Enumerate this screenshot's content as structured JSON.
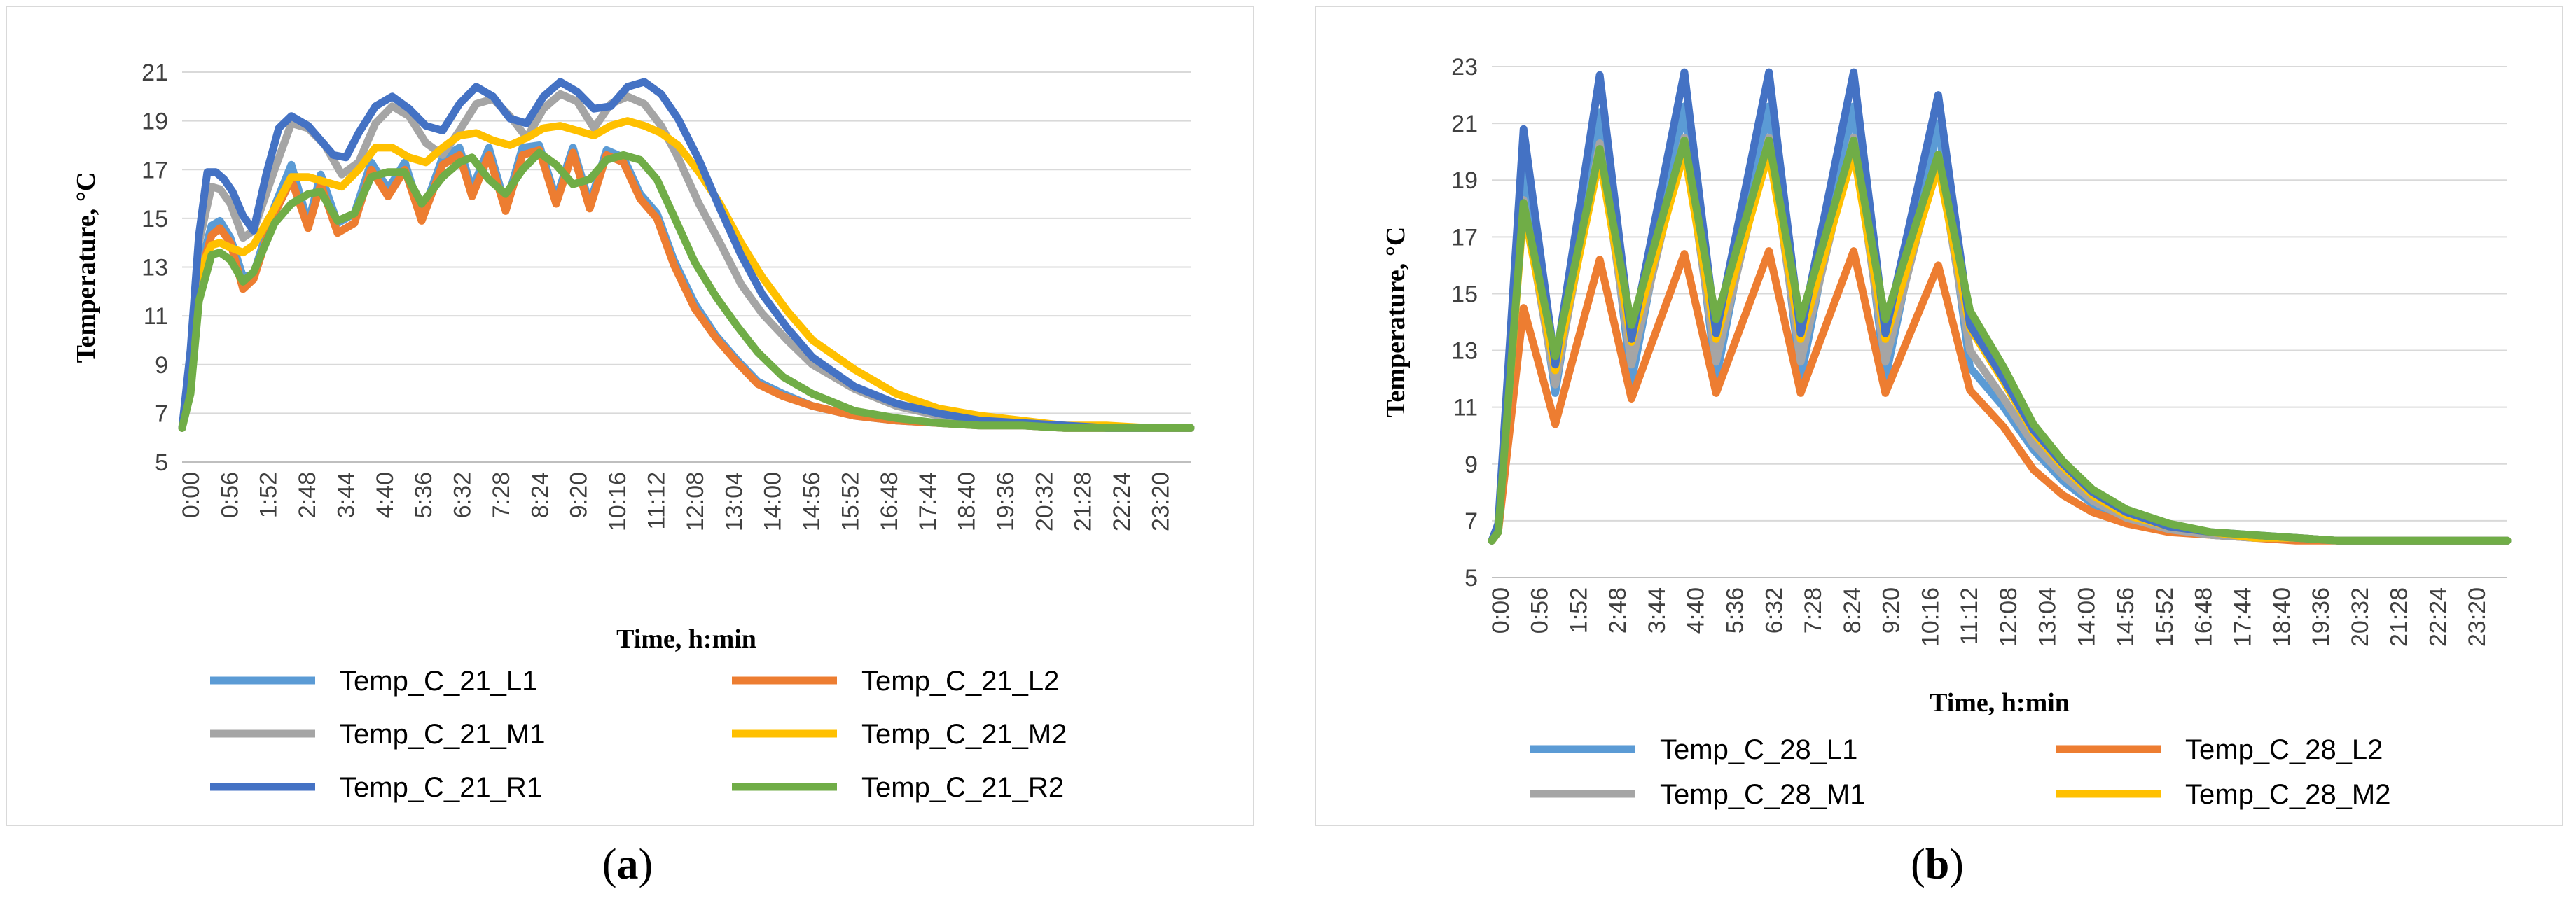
{
  "colors": {
    "L1": "#5B9BD5",
    "L2": "#ED7D31",
    "M1": "#A5A5A5",
    "M2": "#FFC000",
    "R1": "#4472C4",
    "R2": "#70AD47",
    "grid": "#d9d9d9"
  },
  "panels": [
    {
      "open": "(",
      "letter": "a",
      "close": ")"
    },
    {
      "open": "(",
      "letter": "b",
      "close": ")"
    }
  ],
  "chart_data": [
    {
      "type": "line",
      "xlabel": "Time, h:min",
      "ylabel": "Temperature, °C",
      "ylim": [
        5,
        21
      ],
      "yticks": [
        5,
        7,
        9,
        11,
        13,
        15,
        17,
        19,
        21
      ],
      "xlim_hours": [
        0,
        24
      ],
      "xtick_labels": [
        "0:00",
        "0:56",
        "1:52",
        "2:48",
        "3:44",
        "4:40",
        "5:36",
        "6:32",
        "7:28",
        "8:24",
        "9:20",
        "10:16",
        "11:12",
        "12:08",
        "13:04",
        "14:00",
        "14:56",
        "15:52",
        "16:48",
        "17:44",
        "18:40",
        "19:36",
        "20:32",
        "21:28",
        "22:24",
        "23:20"
      ],
      "grid": "horizontal",
      "legend_position": "bottom",
      "series": [
        {
          "name": "Temp_C_21_L1",
          "key": "L1",
          "x": [
            0,
            0.2,
            0.4,
            0.7,
            0.9,
            1.15,
            1.45,
            1.7,
            2.2,
            2.6,
            3.0,
            3.3,
            3.7,
            4.1,
            4.5,
            4.9,
            5.3,
            5.7,
            6.2,
            6.6,
            6.9,
            7.3,
            7.7,
            8.1,
            8.5,
            8.9,
            9.3,
            9.7,
            10.1,
            10.5,
            10.9,
            11.3,
            11.7,
            12.2,
            12.7,
            13.2,
            13.7,
            14.3,
            15,
            16,
            17,
            18,
            19,
            20,
            21,
            22,
            23,
            24
          ],
          "y": [
            6.4,
            8.2,
            12.8,
            14.7,
            14.9,
            14.2,
            12.6,
            12.7,
            15.5,
            17.2,
            14.8,
            16.8,
            14.8,
            15.2,
            17.3,
            16.2,
            17.3,
            15.1,
            17.5,
            17.9,
            16.2,
            17.9,
            15.5,
            17.9,
            18.0,
            15.8,
            17.9,
            15.6,
            17.8,
            17.5,
            16.0,
            15.2,
            13.3,
            11.5,
            10.2,
            9.2,
            8.3,
            7.8,
            7.3,
            6.9,
            6.7,
            6.6,
            6.5,
            6.5,
            6.4,
            6.4,
            6.4,
            6.4
          ]
        },
        {
          "name": "Temp_C_21_L2",
          "key": "L2",
          "x": [
            0,
            0.2,
            0.4,
            0.7,
            0.9,
            1.15,
            1.45,
            1.7,
            2.2,
            2.6,
            3.0,
            3.3,
            3.7,
            4.1,
            4.5,
            4.9,
            5.3,
            5.7,
            6.2,
            6.6,
            6.9,
            7.3,
            7.7,
            8.1,
            8.5,
            8.9,
            9.3,
            9.7,
            10.1,
            10.5,
            10.9,
            11.3,
            11.7,
            12.2,
            12.7,
            13.2,
            13.7,
            14.3,
            15,
            16,
            17,
            18,
            19,
            20,
            21,
            22,
            23,
            24
          ],
          "y": [
            6.4,
            8.0,
            12.5,
            14.3,
            14.6,
            14.0,
            12.1,
            12.5,
            15.2,
            16.6,
            14.6,
            16.4,
            14.4,
            14.8,
            17.0,
            15.9,
            17.0,
            14.9,
            17.2,
            17.6,
            15.9,
            17.6,
            15.3,
            17.6,
            17.8,
            15.6,
            17.7,
            15.4,
            17.6,
            17.3,
            15.8,
            15.0,
            13.1,
            11.3,
            10.1,
            9.1,
            8.2,
            7.7,
            7.3,
            6.9,
            6.7,
            6.6,
            6.5,
            6.5,
            6.4,
            6.4,
            6.4,
            6.4
          ]
        },
        {
          "name": "Temp_C_21_M1",
          "key": "M1",
          "x": [
            0,
            0.2,
            0.4,
            0.7,
            0.9,
            1.15,
            1.45,
            1.7,
            2.2,
            2.6,
            3.0,
            3.4,
            3.8,
            4.2,
            4.6,
            5.0,
            5.4,
            5.8,
            6.2,
            6.6,
            7.0,
            7.4,
            7.8,
            8.2,
            8.6,
            9.0,
            9.4,
            9.8,
            10.2,
            10.6,
            11.0,
            11.4,
            11.8,
            12.3,
            12.8,
            13.3,
            13.8,
            14.4,
            15,
            16,
            17,
            18,
            19,
            20,
            21,
            22,
            23,
            24
          ],
          "y": [
            6.4,
            9.0,
            14.0,
            16.3,
            16.2,
            15.6,
            14.2,
            14.5,
            17.0,
            18.9,
            18.7,
            18.0,
            16.8,
            17.3,
            18.9,
            19.6,
            19.2,
            18.1,
            17.6,
            18.6,
            19.7,
            19.9,
            19.2,
            18.3,
            19.5,
            20.1,
            19.8,
            18.7,
            19.7,
            20.0,
            19.7,
            18.8,
            17.5,
            15.6,
            14.0,
            12.3,
            11.1,
            10.0,
            9.0,
            8.0,
            7.3,
            6.9,
            6.7,
            6.6,
            6.5,
            6.4,
            6.4,
            6.4
          ]
        },
        {
          "name": "Temp_C_21_M2",
          "key": "M2",
          "x": [
            0,
            0.2,
            0.4,
            0.7,
            0.9,
            1.15,
            1.45,
            1.7,
            2.2,
            2.6,
            3.0,
            3.4,
            3.8,
            4.2,
            4.6,
            5.0,
            5.4,
            5.8,
            6.2,
            6.6,
            7.0,
            7.4,
            7.8,
            8.2,
            8.6,
            9.0,
            9.4,
            9.8,
            10.2,
            10.6,
            11.0,
            11.4,
            11.8,
            12.3,
            12.8,
            13.3,
            13.8,
            14.4,
            15,
            16,
            17,
            18,
            19,
            20,
            21,
            22,
            23,
            24
          ],
          "y": [
            6.4,
            8.6,
            12.8,
            13.9,
            14.0,
            13.8,
            13.6,
            13.9,
            15.4,
            16.7,
            16.7,
            16.5,
            16.3,
            17.0,
            17.9,
            17.9,
            17.5,
            17.3,
            17.9,
            18.4,
            18.5,
            18.2,
            18.0,
            18.3,
            18.7,
            18.8,
            18.6,
            18.4,
            18.8,
            19.0,
            18.8,
            18.5,
            18.0,
            16.9,
            15.6,
            14.0,
            12.6,
            11.2,
            10.0,
            8.8,
            7.8,
            7.2,
            6.9,
            6.7,
            6.5,
            6.5,
            6.4,
            6.4
          ]
        },
        {
          "name": "Temp_C_21_R1",
          "key": "R1",
          "x": [
            0,
            0.2,
            0.4,
            0.6,
            0.8,
            1.0,
            1.2,
            1.45,
            1.7,
            2.0,
            2.3,
            2.6,
            3.0,
            3.3,
            3.6,
            3.9,
            4.2,
            4.6,
            5.0,
            5.4,
            5.8,
            6.2,
            6.6,
            7.0,
            7.4,
            7.8,
            8.2,
            8.6,
            9.0,
            9.4,
            9.8,
            10.2,
            10.6,
            11.0,
            11.4,
            11.8,
            12.3,
            12.8,
            13.3,
            13.8,
            14.4,
            15,
            16,
            17,
            18,
            19,
            20,
            21,
            22,
            23,
            24
          ],
          "y": [
            6.4,
            9.6,
            14.3,
            16.9,
            16.9,
            16.6,
            16.1,
            15.1,
            14.5,
            16.8,
            18.7,
            19.2,
            18.8,
            18.2,
            17.6,
            17.5,
            18.5,
            19.6,
            20.0,
            19.5,
            18.8,
            18.6,
            19.7,
            20.4,
            20.0,
            19.1,
            18.9,
            20.0,
            20.6,
            20.2,
            19.5,
            19.6,
            20.4,
            20.6,
            20.1,
            19.1,
            17.4,
            15.4,
            13.5,
            11.9,
            10.5,
            9.3,
            8.1,
            7.4,
            7.0,
            6.7,
            6.6,
            6.5,
            6.4,
            6.4,
            6.4
          ]
        },
        {
          "name": "Temp_C_21_R2",
          "key": "R2",
          "x": [
            0,
            0.2,
            0.4,
            0.7,
            0.9,
            1.15,
            1.45,
            1.7,
            2.2,
            2.6,
            3.0,
            3.3,
            3.7,
            4.1,
            4.5,
            4.9,
            5.3,
            5.7,
            6.2,
            6.6,
            6.9,
            7.3,
            7.7,
            8.1,
            8.5,
            8.9,
            9.3,
            9.7,
            10.1,
            10.5,
            10.9,
            11.3,
            11.7,
            12.2,
            12.7,
            13.2,
            13.7,
            14.3,
            15,
            16,
            17,
            18,
            19,
            20,
            21,
            22,
            23,
            24
          ],
          "y": [
            6.4,
            7.8,
            11.6,
            13.5,
            13.6,
            13.3,
            12.4,
            12.8,
            14.8,
            15.6,
            16.0,
            16.1,
            14.9,
            15.2,
            16.7,
            16.9,
            16.9,
            15.6,
            16.7,
            17.3,
            17.5,
            16.6,
            16.0,
            17.0,
            17.7,
            17.2,
            16.4,
            16.6,
            17.4,
            17.6,
            17.4,
            16.6,
            15.1,
            13.2,
            11.8,
            10.6,
            9.5,
            8.5,
            7.8,
            7.1,
            6.8,
            6.6,
            6.5,
            6.5,
            6.4,
            6.4,
            6.4,
            6.4
          ]
        }
      ]
    },
    {
      "type": "line",
      "xlabel": "Time, h:min",
      "ylabel": "Temperature, °C",
      "ylim": [
        5,
        23
      ],
      "yticks": [
        5,
        7,
        9,
        11,
        13,
        15,
        17,
        19,
        21,
        23
      ],
      "xlim_hours": [
        0,
        24
      ],
      "xtick_labels": [
        "0:00",
        "0:56",
        "1:52",
        "2:48",
        "3:44",
        "4:40",
        "5:36",
        "6:32",
        "7:28",
        "8:24",
        "9:20",
        "10:16",
        "11:12",
        "12:08",
        "13:04",
        "14:00",
        "14:56",
        "15:52",
        "16:48",
        "17:44",
        "18:40",
        "19:36",
        "20:32",
        "21:28",
        "22:24",
        "23:20"
      ],
      "grid": "horizontal",
      "legend_position": "bottom",
      "series": [
        {
          "name": "Temp_C_28_L1",
          "key": "L1",
          "x": [
            0,
            0.15,
            0.75,
            1.5,
            2.55,
            3.3,
            4.55,
            5.3,
            6.55,
            7.3,
            8.55,
            9.3,
            10.55,
            11.3,
            12.1,
            12.8,
            13.5,
            14.2,
            15,
            16,
            17,
            18,
            19,
            20,
            21,
            22,
            23,
            24
          ],
          "y": [
            6.3,
            6.8,
            19.4,
            11.5,
            21.4,
            11.9,
            21.6,
            12.0,
            21.6,
            12.0,
            21.6,
            12.0,
            21.0,
            12.4,
            11.0,
            9.5,
            8.4,
            7.6,
            7.0,
            6.7,
            6.5,
            6.4,
            6.4,
            6.3,
            6.3,
            6.3,
            6.3,
            6.3
          ]
        },
        {
          "name": "Temp_C_28_L2",
          "key": "L2",
          "x": [
            0,
            0.15,
            0.75,
            1.5,
            2.55,
            3.3,
            4.55,
            5.3,
            6.55,
            7.3,
            8.55,
            9.3,
            10.55,
            11.3,
            12.1,
            12.8,
            13.5,
            14.2,
            15,
            16,
            17,
            18,
            19,
            20,
            21,
            22,
            23,
            24
          ],
          "y": [
            6.3,
            6.6,
            14.5,
            10.4,
            16.2,
            11.3,
            16.4,
            11.5,
            16.5,
            11.5,
            16.5,
            11.5,
            16.0,
            11.6,
            10.3,
            8.8,
            7.9,
            7.3,
            6.9,
            6.6,
            6.5,
            6.4,
            6.3,
            6.3,
            6.3,
            6.3,
            6.3,
            6.3
          ]
        },
        {
          "name": "Temp_C_28_M1",
          "key": "M1",
          "x": [
            0,
            0.15,
            0.75,
            1.5,
            2.55,
            3.3,
            4.55,
            5.3,
            6.55,
            7.3,
            8.55,
            9.3,
            10.55,
            11.3,
            12.1,
            12.8,
            13.5,
            14.2,
            15,
            16,
            17,
            18,
            19,
            20,
            21,
            22,
            23,
            24
          ],
          "y": [
            6.3,
            6.7,
            18.3,
            11.8,
            20.3,
            12.5,
            20.5,
            12.6,
            20.5,
            12.6,
            20.5,
            12.6,
            19.9,
            13.0,
            11.3,
            9.7,
            8.6,
            7.7,
            7.1,
            6.7,
            6.5,
            6.4,
            6.4,
            6.3,
            6.3,
            6.3,
            6.3,
            6.3
          ]
        },
        {
          "name": "Temp_C_28_M2",
          "key": "M2",
          "x": [
            0,
            0.15,
            0.75,
            1.5,
            2.55,
            3.3,
            4.55,
            5.3,
            6.55,
            7.3,
            8.55,
            9.3,
            10.55,
            11.3,
            12.1,
            12.8,
            13.5,
            14.2,
            15,
            16,
            17,
            18,
            19,
            20,
            21,
            22,
            23,
            24
          ],
          "y": [
            6.3,
            6.7,
            18.0,
            12.3,
            19.8,
            13.3,
            20.0,
            13.4,
            20.0,
            13.4,
            20.0,
            13.4,
            19.5,
            13.8,
            11.9,
            10.1,
            8.9,
            7.9,
            7.2,
            6.8,
            6.6,
            6.4,
            6.4,
            6.3,
            6.3,
            6.3,
            6.3,
            6.3
          ]
        },
        {
          "name": "",
          "key": "R1",
          "x": [
            0,
            0.15,
            0.75,
            1.5,
            2.55,
            3.3,
            4.55,
            5.3,
            6.55,
            7.3,
            8.55,
            9.3,
            10.55,
            11.3,
            12.1,
            12.8,
            13.5,
            14.2,
            15,
            16,
            17,
            18,
            19,
            20,
            21,
            22,
            23,
            24
          ],
          "y": [
            6.3,
            6.9,
            20.8,
            12.5,
            22.7,
            13.4,
            22.8,
            13.6,
            22.8,
            13.6,
            22.8,
            13.6,
            22.0,
            13.9,
            12.0,
            10.2,
            9.0,
            8.0,
            7.3,
            6.8,
            6.6,
            6.5,
            6.4,
            6.3,
            6.3,
            6.3,
            6.3,
            6.3
          ]
        },
        {
          "name": "",
          "key": "R2",
          "x": [
            0,
            0.15,
            0.75,
            1.5,
            2.55,
            3.3,
            4.55,
            5.3,
            6.55,
            7.3,
            8.55,
            9.3,
            10.55,
            11.3,
            12.1,
            12.8,
            13.5,
            14.2,
            15,
            16,
            17,
            18,
            19,
            20,
            21,
            22,
            23,
            24
          ],
          "y": [
            6.3,
            6.6,
            18.2,
            12.8,
            20.1,
            13.9,
            20.4,
            14.1,
            20.4,
            14.1,
            20.4,
            14.1,
            19.9,
            14.4,
            12.4,
            10.4,
            9.1,
            8.1,
            7.4,
            6.9,
            6.6,
            6.5,
            6.4,
            6.3,
            6.3,
            6.3,
            6.3,
            6.3
          ]
        }
      ]
    }
  ]
}
